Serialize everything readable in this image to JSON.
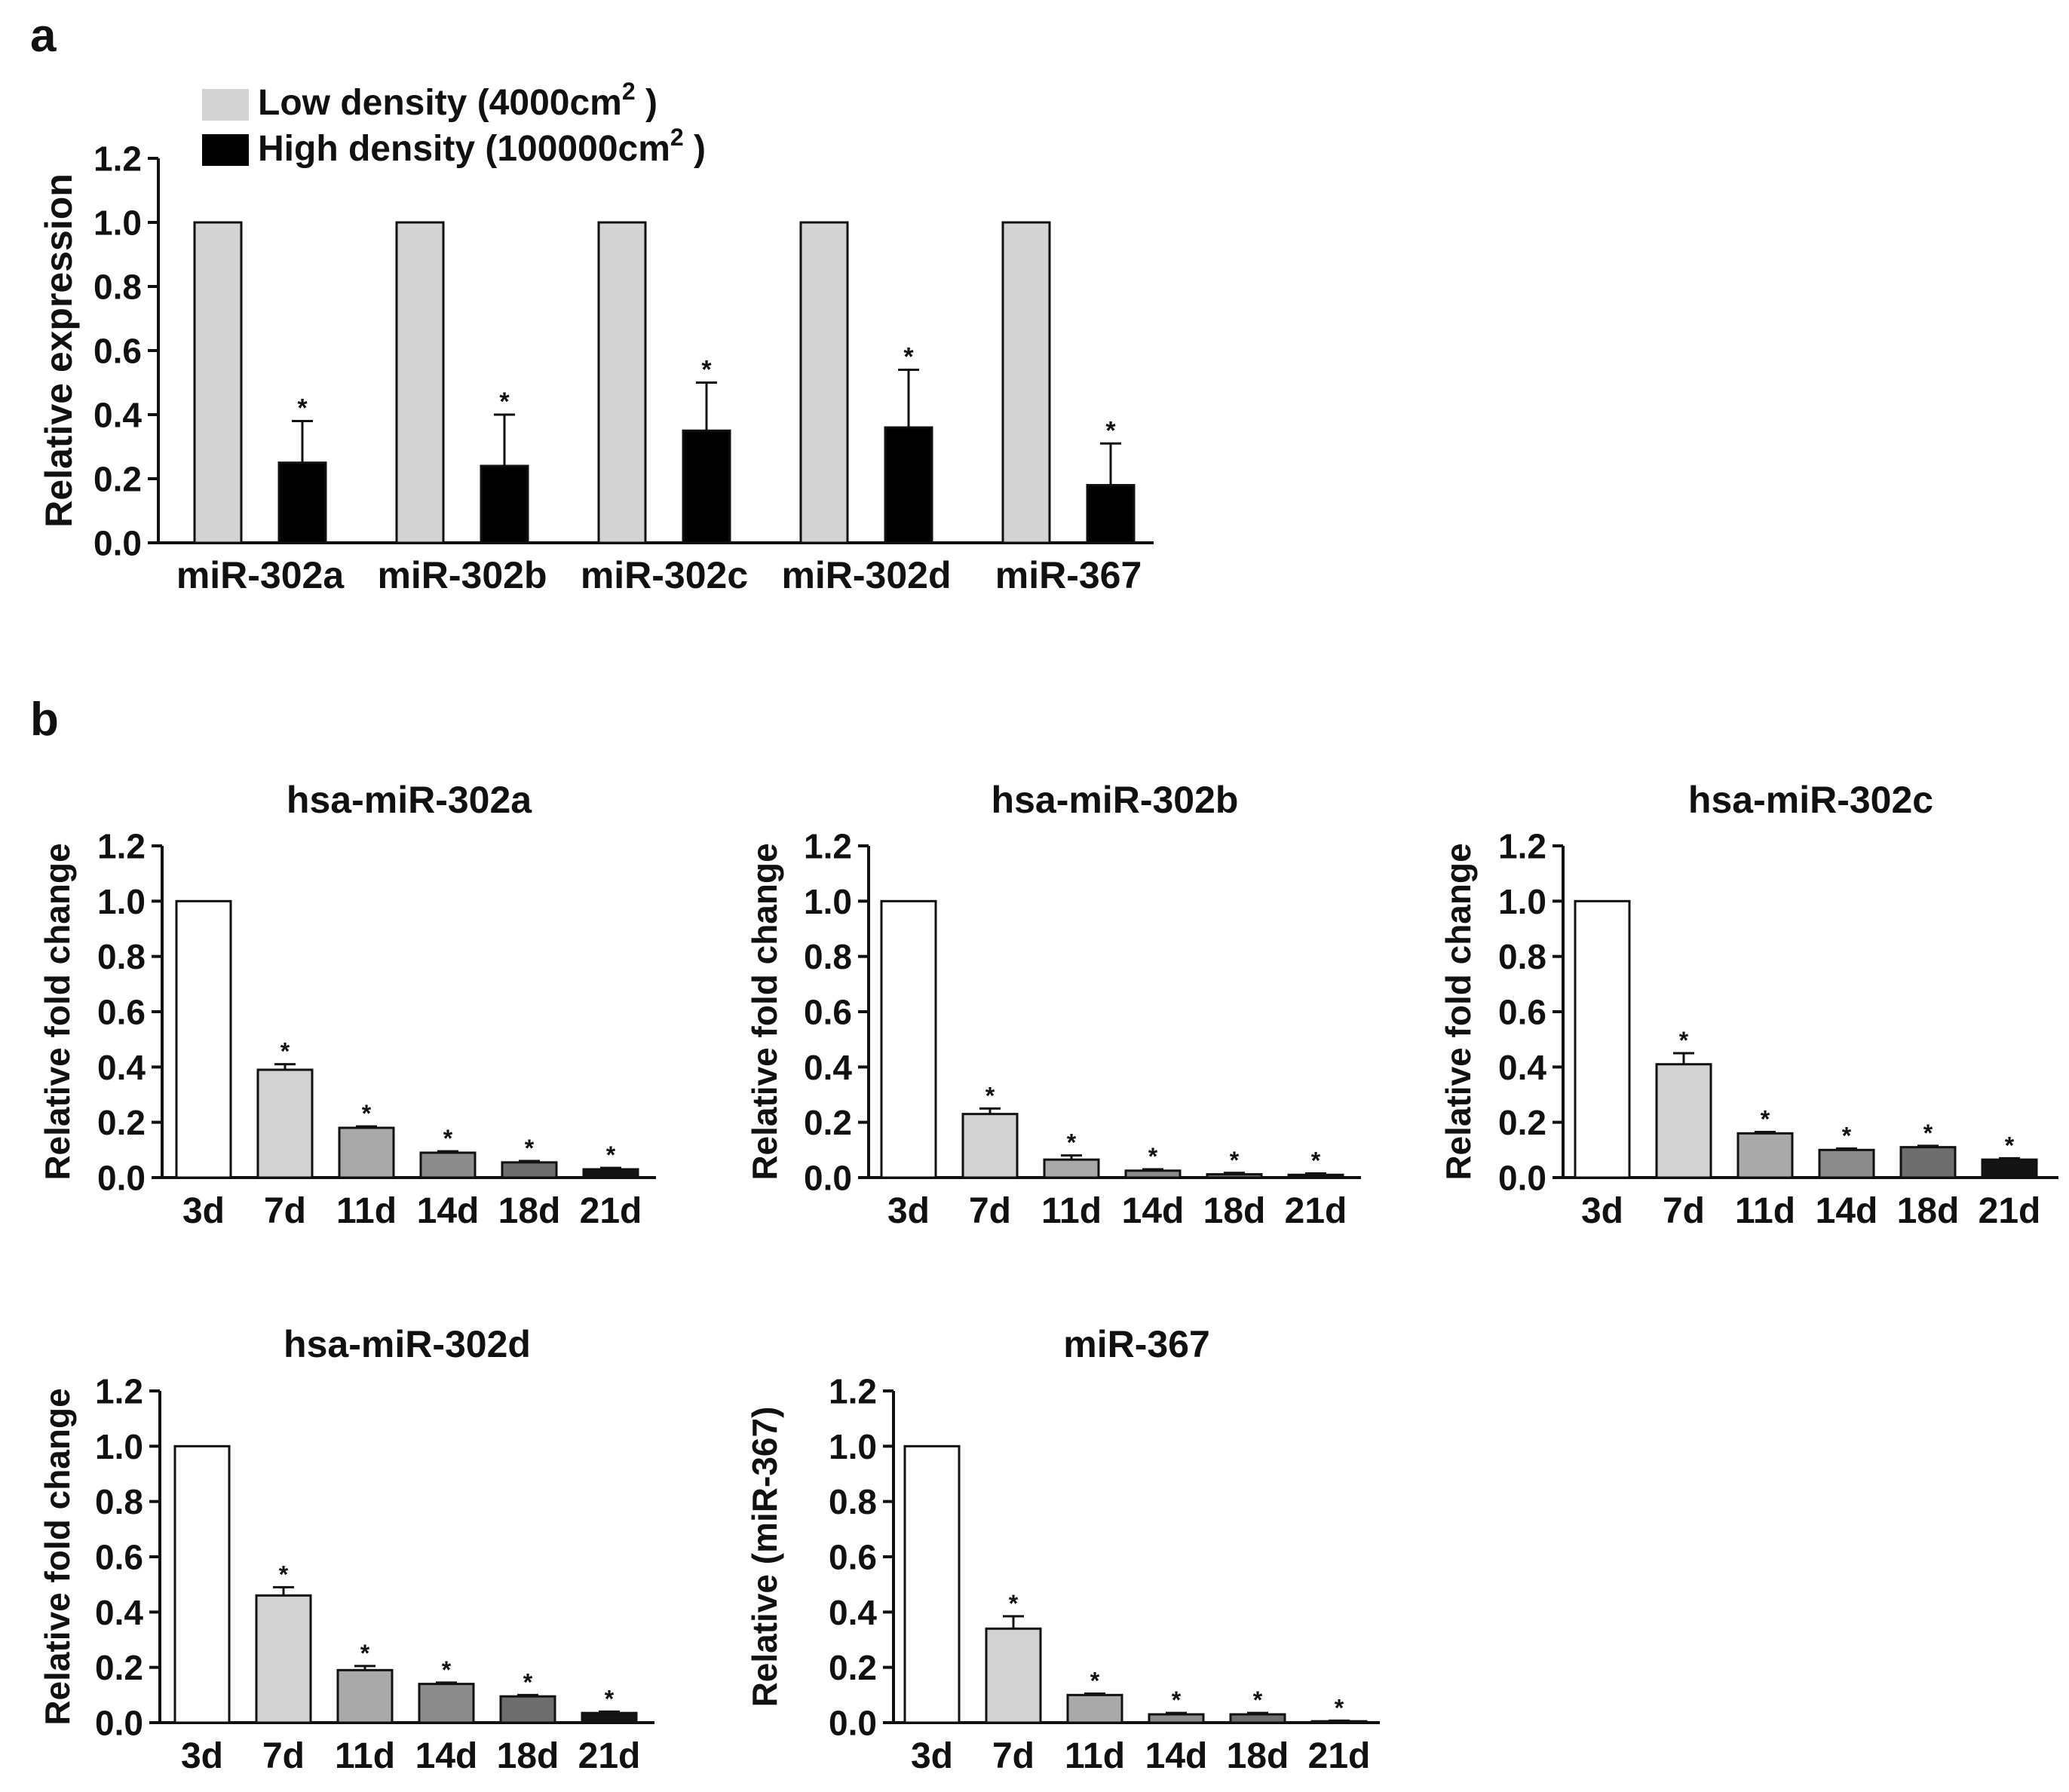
{
  "panel_labels": {
    "a": "a",
    "b": "b"
  },
  "styles": {
    "low_color": "#d3d3d3",
    "high_color": "#000000",
    "time_colors": [
      "#ffffff",
      "#d2d2d2",
      "#a9a9a9",
      "#8c8c8c",
      "#6e6e6e",
      "#141414"
    ],
    "stroke": "#111111"
  },
  "chart_data": [
    {
      "id": "a",
      "type": "bar",
      "title": "",
      "xlabel": "",
      "ylabel": "Relative expression",
      "ylim": [
        0,
        1.2
      ],
      "yticks": [
        "0.0",
        "0.2",
        "0.4",
        "0.6",
        "0.8",
        "1.0",
        "1.2"
      ],
      "categories": [
        "miR-302a",
        "miR-302b",
        "miR-302c",
        "miR-302d",
        "miR-367"
      ],
      "legend": {
        "low_name": "Low density (4000cm",
        "high_name": "High density (100000cm",
        "sup": "2",
        "suffix": " )",
        "placement": "top-left"
      },
      "series": [
        {
          "name": "Low density (4000cm2 )",
          "values": [
            1.0,
            1.0,
            1.0,
            1.0,
            1.0
          ],
          "errors": [
            0,
            0,
            0,
            0,
            0
          ],
          "sig": [
            "",
            "",
            "",
            "",
            ""
          ]
        },
        {
          "name": "High density (100000cm2 )",
          "values": [
            0.25,
            0.24,
            0.35,
            0.36,
            0.18
          ],
          "errors": [
            0.13,
            0.16,
            0.15,
            0.18,
            0.13
          ],
          "sig": [
            "*",
            "*",
            "*",
            "*",
            "*"
          ]
        }
      ]
    },
    {
      "id": "b1",
      "type": "bar",
      "title": "hsa-miR-302a",
      "xlabel": "",
      "ylabel": "Relative fold change",
      "ylim": [
        0,
        1.2
      ],
      "yticks": [
        "0.0",
        "0.2",
        "0.4",
        "0.6",
        "0.8",
        "1.0",
        "1.2"
      ],
      "categories": [
        "3d",
        "7d",
        "11d",
        "14d",
        "18d",
        "21d"
      ],
      "values": [
        1.0,
        0.39,
        0.18,
        0.09,
        0.055,
        0.03
      ],
      "errors": [
        0,
        0.02,
        0.005,
        0.005,
        0.005,
        0.005
      ],
      "sig": [
        "",
        "*",
        "*",
        "*",
        "*",
        "*"
      ]
    },
    {
      "id": "b2",
      "type": "bar",
      "title": "hsa-miR-302b",
      "xlabel": "",
      "ylabel": "Relative fold change",
      "ylim": [
        0,
        1.2
      ],
      "yticks": [
        "0.0",
        "0.2",
        "0.4",
        "0.6",
        "0.8",
        "1.0",
        "1.2"
      ],
      "categories": [
        "3d",
        "7d",
        "11d",
        "14d",
        "18d",
        "21d"
      ],
      "values": [
        1.0,
        0.23,
        0.065,
        0.025,
        0.012,
        0.01
      ],
      "errors": [
        0,
        0.02,
        0.015,
        0.005,
        0.005,
        0.005
      ],
      "sig": [
        "",
        "*",
        "*",
        "*",
        "*",
        "*"
      ]
    },
    {
      "id": "b3",
      "type": "bar",
      "title": "hsa-miR-302c",
      "xlabel": "",
      "ylabel": "Relative fold change",
      "ylim": [
        0,
        1.2
      ],
      "yticks": [
        "0.0",
        "0.2",
        "0.4",
        "0.6",
        "0.8",
        "1.0",
        "1.2"
      ],
      "categories": [
        "3d",
        "7d",
        "11d",
        "14d",
        "18d",
        "21d"
      ],
      "values": [
        1.0,
        0.41,
        0.16,
        0.1,
        0.11,
        0.065
      ],
      "errors": [
        0,
        0.04,
        0.005,
        0.005,
        0.005,
        0.005
      ],
      "sig": [
        "",
        "*",
        "*",
        "*",
        "*",
        "*"
      ]
    },
    {
      "id": "b4",
      "type": "bar",
      "title": "hsa-miR-302d",
      "xlabel": "",
      "ylabel": "Relative fold change",
      "ylim": [
        0,
        1.2
      ],
      "yticks": [
        "0.0",
        "0.2",
        "0.4",
        "0.6",
        "0.8",
        "1.0",
        "1.2"
      ],
      "categories": [
        "3d",
        "7d",
        "11d",
        "14d",
        "18d",
        "21d"
      ],
      "values": [
        1.0,
        0.46,
        0.19,
        0.14,
        0.095,
        0.035
      ],
      "errors": [
        0,
        0.03,
        0.015,
        0.005,
        0.005,
        0.005
      ],
      "sig": [
        "",
        "*",
        "*",
        "*",
        "*",
        "*"
      ]
    },
    {
      "id": "b5",
      "type": "bar",
      "title": "miR-367",
      "xlabel": "",
      "ylabel": "Relative (miR-367)",
      "ylim": [
        0,
        1.2
      ],
      "yticks": [
        "0.0",
        "0.2",
        "0.4",
        "0.6",
        "0.8",
        "1.0",
        "1.2"
      ],
      "categories": [
        "3d",
        "7d",
        "11d",
        "14d",
        "18d",
        "21d"
      ],
      "values": [
        1.0,
        0.34,
        0.1,
        0.03,
        0.03,
        0.005
      ],
      "errors": [
        0,
        0.045,
        0.005,
        0.005,
        0.005,
        0.002
      ],
      "sig": [
        "",
        "*",
        "*",
        "*",
        "*",
        "*"
      ]
    }
  ]
}
